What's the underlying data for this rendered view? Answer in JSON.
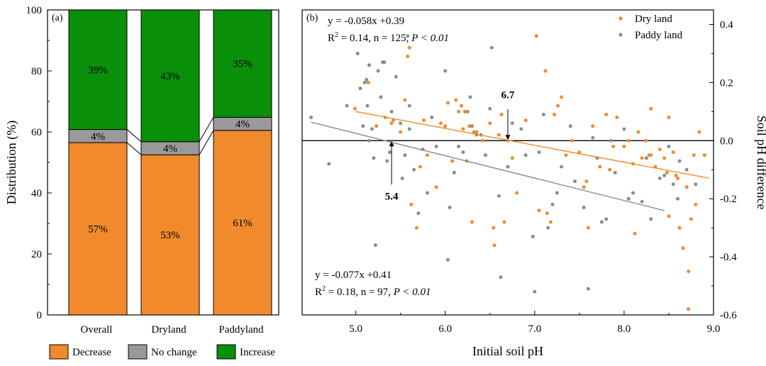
{
  "colors": {
    "decrease": "#F08A2C",
    "no_change": "#999999",
    "increase": "#0A8F0A",
    "dry": "#F08A2C",
    "paddy": "#8C8C8C",
    "paddy_label": "#8C8C8C"
  },
  "chart_data": [
    {
      "type": "bar",
      "panel_label": "(a)",
      "stacked": true,
      "ylabel": "Distribution (%)",
      "ylim": [
        0,
        100
      ],
      "yticks": [
        0,
        20,
        40,
        60,
        80,
        100
      ],
      "categories": [
        "Overall",
        "Dryland",
        "Paddyland"
      ],
      "series": [
        {
          "name": "Decrease",
          "values": [
            56.5,
            52.5,
            60.5
          ],
          "labels": [
            "57%",
            "53%",
            "61%"
          ]
        },
        {
          "name": "No change",
          "values": [
            4.3,
            4.3,
            4.3
          ],
          "labels": [
            "4%",
            "4%",
            "4%"
          ]
        },
        {
          "name": "Increase",
          "values": [
            39.2,
            43.2,
            35.2
          ],
          "labels": [
            "39%",
            "43%",
            "35%"
          ]
        }
      ],
      "legend": [
        "Decrease",
        "No change",
        "Increase"
      ],
      "legend_placement": "bottom"
    },
    {
      "type": "scatter",
      "panel_label": "(b)",
      "xlabel": "Initial soil pH",
      "ylabel": "Soil pH difference",
      "xlim": [
        4.4,
        9.0
      ],
      "ylim": [
        -0.6,
        0.45
      ],
      "xticks": [
        "5.0",
        "6.0",
        "7.0",
        "8.0",
        "9.0"
      ],
      "yticks": [
        "-0.6",
        "-0.4",
        "-0.2",
        "0.0",
        "0.2",
        "0.4"
      ],
      "legend_placement": "top-right",
      "series": [
        {
          "name": "Dry land",
          "regression": {
            "slope": -0.058,
            "intercept": 0.39,
            "x_range": [
              5.0,
              8.95
            ]
          },
          "annotation": {
            "eq": "y = -0.058x +0.39",
            "stats_pre": "R",
            "stats_mid": " = 0.14, n = 125, ",
            "p_text": "P < 0.01"
          },
          "threshold": {
            "x": 6.7,
            "label": "6.7"
          },
          "points": [
            [
              4.99,
              0.11
            ],
            [
              5.14,
              0.2
            ],
            [
              5.23,
              0.05
            ],
            [
              5.33,
              0.08
            ],
            [
              5.4,
              0.06
            ],
            [
              5.42,
              0.07
            ],
            [
              5.5,
              0.03
            ],
            [
              5.55,
              0.14
            ],
            [
              5.58,
              0.29
            ],
            [
              5.6,
              0.32
            ],
            [
              5.62,
              -0.22
            ],
            [
              5.68,
              -0.3
            ],
            [
              5.72,
              -0.09
            ],
            [
              5.76,
              0.07
            ],
            [
              5.8,
              -0.05
            ],
            [
              5.9,
              -0.16
            ],
            [
              5.95,
              0.06
            ],
            [
              6.0,
              0.05
            ],
            [
              6.03,
              0.13
            ],
            [
              6.08,
              -0.07
            ],
            [
              6.12,
              0.14
            ],
            [
              6.15,
              0.1
            ],
            [
              6.18,
              0.12
            ],
            [
              6.2,
              0.04
            ],
            [
              6.22,
              0.1
            ],
            [
              6.24,
              -0.07
            ],
            [
              6.27,
              0.05
            ],
            [
              6.3,
              -0.28
            ],
            [
              6.32,
              0.03
            ],
            [
              6.35,
              0.03
            ],
            [
              6.42,
              0.0
            ],
            [
              6.5,
              0.06
            ],
            [
              6.54,
              -0.3
            ],
            [
              6.55,
              -0.36
            ],
            [
              6.6,
              0.02
            ],
            [
              6.63,
              0.09
            ],
            [
              6.66,
              -0.28
            ],
            [
              6.7,
              0.0
            ],
            [
              6.75,
              -0.06
            ],
            [
              6.8,
              -0.18
            ],
            [
              6.9,
              0.07
            ],
            [
              7.02,
              0.36
            ],
            [
              7.05,
              -0.24
            ],
            [
              7.12,
              0.24
            ],
            [
              7.14,
              -0.25
            ],
            [
              7.18,
              -0.28
            ],
            [
              7.22,
              0.09
            ],
            [
              7.26,
              0.12
            ],
            [
              7.3,
              0.15
            ],
            [
              7.35,
              -0.05
            ],
            [
              7.42,
              0.0
            ],
            [
              7.5,
              -0.04
            ],
            [
              7.55,
              -0.16
            ],
            [
              7.58,
              -0.14
            ],
            [
              7.6,
              -0.3
            ],
            [
              7.65,
              0.05
            ],
            [
              7.73,
              -0.09
            ],
            [
              7.8,
              0.09
            ],
            [
              7.84,
              -0.1
            ],
            [
              7.88,
              -0.02
            ],
            [
              7.92,
              0.08
            ],
            [
              8.0,
              -0.02
            ],
            [
              8.05,
              0.0
            ],
            [
              8.1,
              -0.08
            ],
            [
              8.12,
              -0.32
            ],
            [
              8.16,
              0.03
            ],
            [
              8.2,
              -0.06
            ],
            [
              8.24,
              0.0
            ],
            [
              8.28,
              -0.05
            ],
            [
              8.3,
              0.11
            ],
            [
              8.35,
              -0.09
            ],
            [
              8.4,
              -0.03
            ],
            [
              8.45,
              -0.06
            ],
            [
              8.48,
              -0.11
            ],
            [
              8.5,
              0.08
            ],
            [
              8.55,
              -0.04
            ],
            [
              8.58,
              -0.12
            ],
            [
              8.6,
              -0.13
            ],
            [
              8.62,
              -0.3
            ],
            [
              8.66,
              -0.37
            ],
            [
              8.7,
              -0.16
            ],
            [
              8.72,
              -0.45
            ],
            [
              8.75,
              -0.27
            ],
            [
              8.78,
              -0.05
            ],
            [
              8.8,
              -0.22
            ],
            [
              8.84,
              0.03
            ],
            [
              8.9,
              -0.05
            ],
            [
              8.72,
              -0.58
            ],
            [
              8.5,
              -0.26
            ],
            [
              8.3,
              -0.05
            ]
          ]
        },
        {
          "name": "Paddy land",
          "regression": {
            "slope": -0.077,
            "intercept": 0.41,
            "x_range": [
              4.5,
              8.45
            ]
          },
          "annotation": {
            "eq": "y = -0.077x +0.41",
            "stats_pre": "R",
            "stats_mid": " = 0.18, n = 97, ",
            "p_text": "P < 0.01"
          },
          "threshold": {
            "x": 5.4,
            "label": "5.4"
          },
          "points": [
            [
              4.5,
              0.08
            ],
            [
              4.7,
              -0.08
            ],
            [
              4.9,
              0.12
            ],
            [
              5.02,
              0.3
            ],
            [
              5.05,
              0.18
            ],
            [
              5.08,
              0.05
            ],
            [
              5.1,
              0.2
            ],
            [
              5.12,
              0.21
            ],
            [
              5.13,
              0.12
            ],
            [
              5.15,
              0.0
            ],
            [
              5.18,
              0.04
            ],
            [
              5.2,
              -0.06
            ],
            [
              5.22,
              -0.36
            ],
            [
              5.25,
              0.24
            ],
            [
              5.28,
              0.15
            ],
            [
              5.3,
              0.27
            ],
            [
              5.32,
              0.27
            ],
            [
              5.35,
              -0.07
            ],
            [
              5.38,
              -0.04
            ],
            [
              5.4,
              0.1
            ],
            [
              5.45,
              0.22
            ],
            [
              5.5,
              0.06
            ],
            [
              5.52,
              -0.13
            ],
            [
              5.55,
              -0.05
            ],
            [
              5.58,
              0.36
            ],
            [
              5.6,
              0.04
            ],
            [
              5.65,
              -0.1
            ],
            [
              5.7,
              -0.25
            ],
            [
              5.75,
              -0.03
            ],
            [
              5.8,
              -0.18
            ],
            [
              5.85,
              0.08
            ],
            [
              5.9,
              -0.02
            ],
            [
              6.0,
              0.24
            ],
            [
              6.03,
              -0.41
            ],
            [
              6.05,
              -0.23
            ],
            [
              6.1,
              -0.11
            ],
            [
              6.15,
              -0.02
            ],
            [
              6.2,
              -0.04
            ],
            [
              6.25,
              0.1
            ],
            [
              6.3,
              0.05
            ],
            [
              6.35,
              0.02
            ],
            [
              6.4,
              0.02
            ],
            [
              6.45,
              -0.05
            ],
            [
              6.5,
              0.11
            ],
            [
              6.52,
              0.32
            ],
            [
              6.6,
              -0.19
            ],
            [
              6.62,
              -0.47
            ],
            [
              6.7,
              -0.09
            ],
            [
              6.75,
              0.06
            ],
            [
              6.85,
              0.04
            ],
            [
              6.98,
              -0.33
            ],
            [
              7.0,
              -0.52
            ],
            [
              7.05,
              -0.04
            ],
            [
              7.1,
              0.09
            ],
            [
              7.15,
              -0.3
            ],
            [
              7.2,
              -0.22
            ],
            [
              7.3,
              -0.09
            ],
            [
              7.4,
              0.05
            ],
            [
              7.45,
              -0.14
            ],
            [
              7.55,
              -0.23
            ],
            [
              7.6,
              -0.51
            ],
            [
              7.65,
              0.01
            ],
            [
              7.7,
              -0.06
            ],
            [
              7.75,
              -0.28
            ],
            [
              7.8,
              -0.27
            ],
            [
              7.85,
              0.0
            ],
            [
              7.9,
              -0.11
            ],
            [
              8.0,
              0.04
            ],
            [
              8.05,
              -0.2
            ],
            [
              8.1,
              -0.18
            ],
            [
              8.2,
              -0.21
            ],
            [
              8.3,
              -0.27
            ],
            [
              8.4,
              -0.13
            ],
            [
              8.45,
              -0.12
            ],
            [
              8.5,
              -0.02
            ],
            [
              8.55,
              -0.15
            ],
            [
              8.6,
              -0.2
            ],
            [
              8.62,
              -0.07
            ],
            [
              8.7,
              -0.1
            ],
            [
              8.8,
              -0.15
            ],
            [
              5.6,
              0.12
            ],
            [
              6.28,
              0.15
            ],
            [
              5.15,
              0.26
            ],
            [
              6.9,
              -0.05
            ],
            [
              7.25,
              -0.18
            ],
            [
              8.25,
              -0.06
            ]
          ]
        }
      ]
    }
  ]
}
